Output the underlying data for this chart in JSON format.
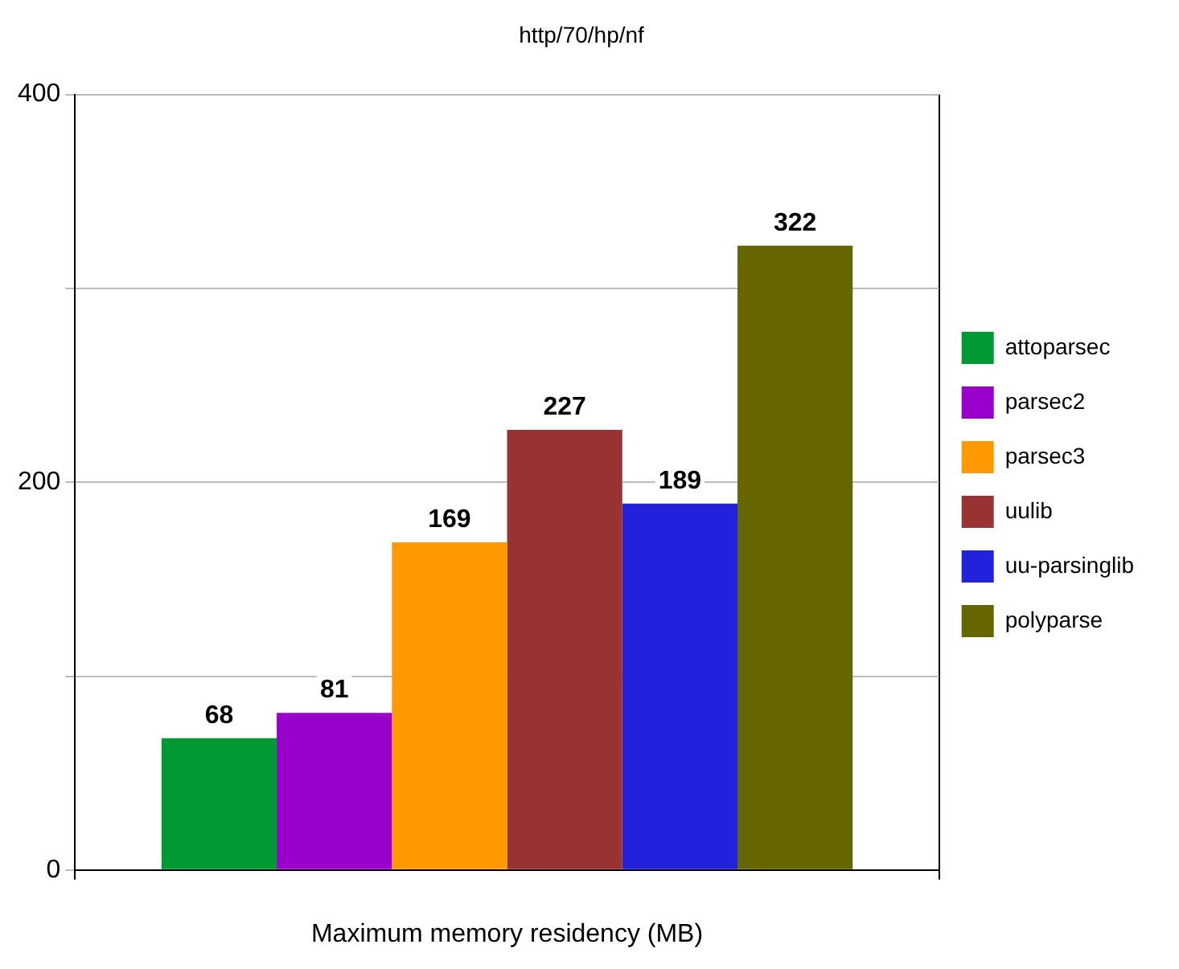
{
  "chart_data": {
    "type": "bar",
    "title": "http/70/hp/nf",
    "xlabel": "Maximum memory residency (MB)",
    "categories": [
      null
    ],
    "series": [
      {
        "name": "attoparsec",
        "color": "#009933",
        "values": [
          68
        ]
      },
      {
        "name": "parsec2",
        "color": "#9900cc",
        "values": [
          81
        ]
      },
      {
        "name": "parsec3",
        "color": "#ff9900",
        "values": [
          169
        ]
      },
      {
        "name": "uulib",
        "color": "#993333",
        "values": [
          227
        ]
      },
      {
        "name": "uu-parsinglib",
        "color": "#2222dd",
        "values": [
          189
        ]
      },
      {
        "name": "polyparse",
        "color": "#666600",
        "values": [
          322
        ]
      }
    ],
    "ylim": [
      0,
      400
    ],
    "yticks": [
      0,
      {
        "value": 100,
        "label": null
      },
      200,
      {
        "value": 300,
        "label": null
      },
      400
    ],
    "grid": "y",
    "legend": "right",
    "data_labels": true
  }
}
